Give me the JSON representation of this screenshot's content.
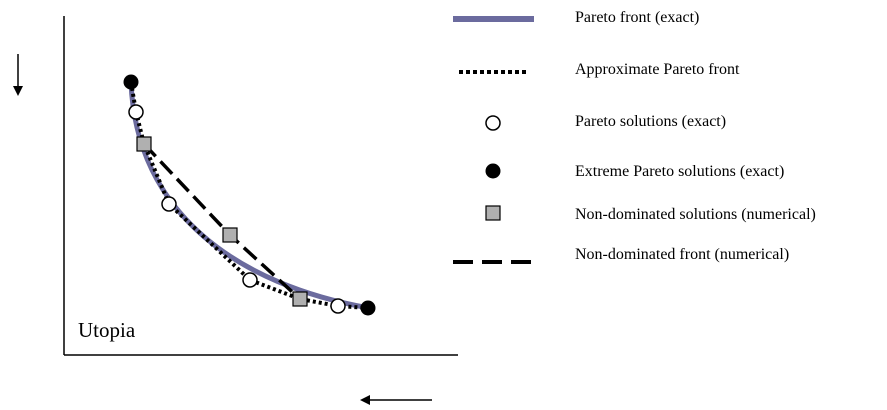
{
  "colors": {
    "pareto_front": "#6b6b9e",
    "approx_front": "#000000",
    "pareto_solution_fill": "#ffffff",
    "extreme_solution_fill": "#000000",
    "nondominated_fill": "#b0b0b0",
    "nondominated_front": "#000000",
    "axes": "#000000"
  },
  "labels": {
    "utopia": "Utopia"
  },
  "legend": {
    "pareto_front_exact": "Pareto front (exact)",
    "approx_pareto_front": "Approximate Pareto front",
    "pareto_solutions_exact": "Pareto solutions (exact)",
    "extreme_pareto_solutions_exact": "Extreme Pareto solutions (exact)",
    "nondominated_solutions_numerical": "Non-dominated solutions (numerical)",
    "nondominated_front_numerical": "Non-dominated front (numerical)"
  },
  "icons": {
    "vertical_arrow": "arrow-down-icon",
    "horizontal_arrow": "arrow-left-icon"
  }
}
